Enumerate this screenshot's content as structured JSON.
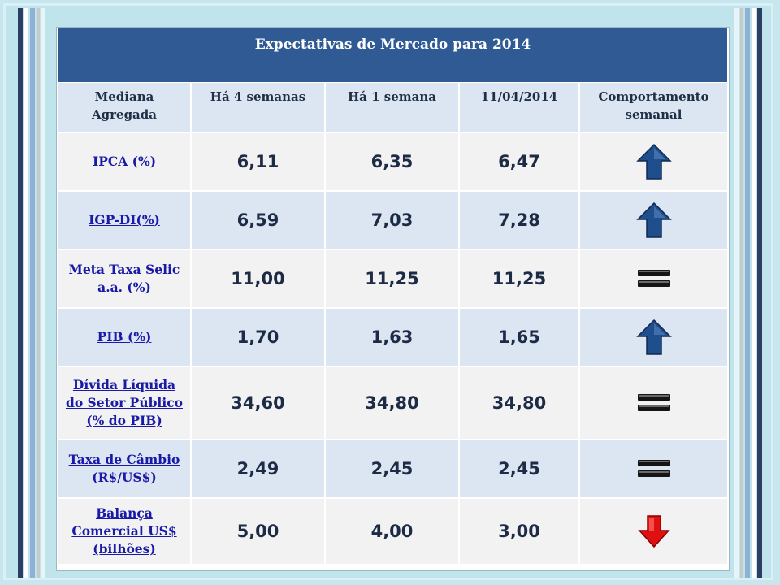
{
  "title": "Expectativas de Mercado para 2014",
  "headers": [
    "Mediana\nAgregada",
    "Há 4 semanas",
    "Há 1 semana",
    "11/04/2014",
    "Comportamento\nsemanal"
  ],
  "rows": [
    {
      "label": "IPCA (%)",
      "v1": "6,11",
      "v2": "6,35",
      "v3": "6,47",
      "trend": "up-arrow-icon"
    },
    {
      "label": "IGP-DI(%)",
      "v1": "6,59",
      "v2": "7,03",
      "v3": "7,28",
      "trend": "up-arrow-icon"
    },
    {
      "label": "Meta Taxa Selic\na.a. (%)",
      "v1": "11,00",
      "v2": "11,25",
      "v3": "11,25",
      "trend": "equal-icon"
    },
    {
      "label": "PIB (%)",
      "v1": "1,70",
      "v2": "1,63",
      "v3": "1,65",
      "trend": "up-arrow-icon"
    },
    {
      "label": "Dívida Líquida\ndo Setor Público\n(% do PIB)",
      "v1": "34,60",
      "v2": "34,80",
      "v3": "34,80",
      "trend": "equal-icon"
    },
    {
      "label": "Taxa de Câmbio\n(R$/US$)",
      "v1": "2,49",
      "v2": "2,45",
      "v3": "2,45",
      "trend": "equal-icon"
    },
    {
      "label": "Balança\nComercial US$\n(bilhões)",
      "v1": "5,00",
      "v2": "4,00",
      "v3": "3,00",
      "trend": "down-arrow-icon"
    }
  ],
  "colors": {
    "title_bg": "#2f5a94",
    "header_bg": "#dce6f2",
    "row_light": "#f2f2f2",
    "row_blue": "#dce6f2",
    "label_link": "#1a1aa8",
    "value_text": "#1e2b47",
    "arrow_up": "#1f4e8c",
    "arrow_down": "#e01010",
    "equal": "#151515"
  }
}
